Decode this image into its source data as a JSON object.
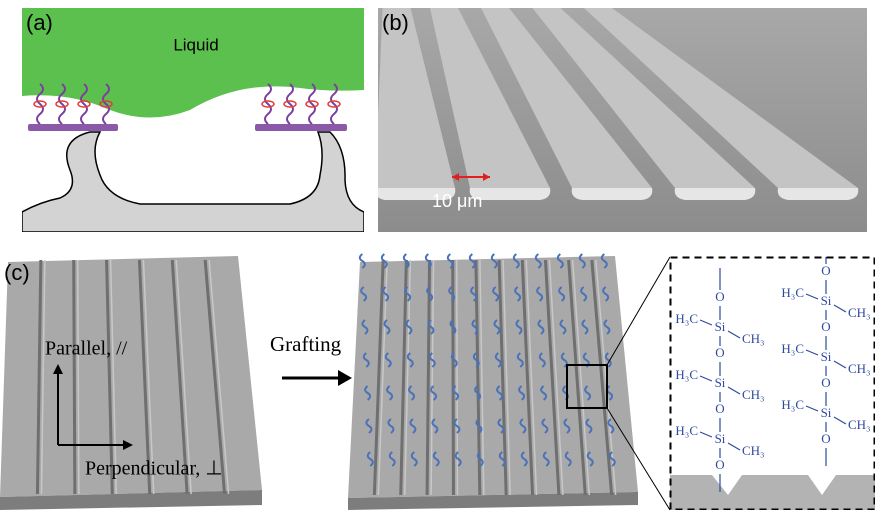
{
  "panels": {
    "a": {
      "label": "(a)",
      "liquid": "Liquid"
    },
    "b": {
      "label": "(b)",
      "scale_bar": "10 μm"
    },
    "c": {
      "label": "(c)",
      "parallel": "Parallel, //",
      "perpendicular": "Perpendicular, ⊥",
      "process": "Grafting",
      "molecule": {
        "chains": [
          {
            "units": [
              {
                "o": "O",
                "si": "Si",
                "left": "H₃C",
                "right": "CH₃"
              },
              {
                "o": "O",
                "si": "Si",
                "left": "H₃C",
                "right": "CH₃"
              },
              {
                "o": "O",
                "si": "Si",
                "left": "H₃C",
                "right": "CH₃"
              }
            ],
            "end": "O"
          },
          {
            "units": [
              {
                "o": "O",
                "si": "Si",
                "left": "H₃C",
                "right": "CH₃"
              },
              {
                "o": "O",
                "si": "Si",
                "left": "H₃C",
                "right": "CH₃"
              },
              {
                "o": "O",
                "si": "Si",
                "left": "H₃C",
                "right": "CH₃"
              }
            ],
            "end": "O"
          }
        ]
      }
    }
  }
}
